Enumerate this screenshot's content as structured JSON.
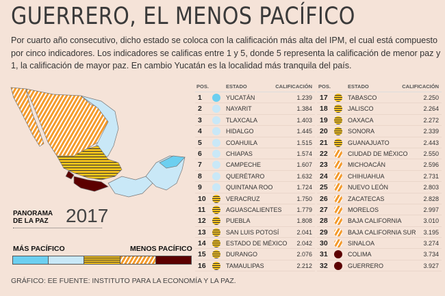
{
  "title": "GUERRERO, EL MENOS PACÍFICO",
  "intro": "Por cuarto año consecutivo, dicho estado se coloca con la calificación más alta del IPM, el cual está compuesto por cinco indicadores. Los indicadores se calificas entre 1 y 5, donde 5 representa la calificación de menor paz y 1, la calificación de mayor paz. En cambio Yucatán   es la localidad más tranquila del país.",
  "panorama": {
    "line1": "PANORAMA",
    "line2": "DE LA PAZ",
    "year": "2017"
  },
  "legend": {
    "left": "MÁS PACÍFICO",
    "right": "MENOS PACÍFICO"
  },
  "colors": {
    "most_peaceful": "#6ccff0",
    "peaceful": "#c9e8f7",
    "mid": "#f6c21c",
    "high": "#f39a2c",
    "least_peaceful": "#5c0000"
  },
  "table_headers": {
    "pos": "POS.",
    "state": "ESTADO",
    "score": "CALIFICACIÓN"
  },
  "rows": [
    {
      "pos": "1",
      "state": "YUCATÁN",
      "score": "1.239",
      "cat": 1
    },
    {
      "pos": "2",
      "state": "NAYARIT",
      "score": "1.384",
      "cat": 2
    },
    {
      "pos": "3",
      "state": "TLAXCALA",
      "score": "1.403",
      "cat": 2
    },
    {
      "pos": "4",
      "state": "HIDALGO",
      "score": "1.445",
      "cat": 2
    },
    {
      "pos": "5",
      "state": "COAHUILA",
      "score": "1.515",
      "cat": 2
    },
    {
      "pos": "6",
      "state": "CHIAPAS",
      "score": "1.574",
      "cat": 2
    },
    {
      "pos": "7",
      "state": "CAMPECHE",
      "score": "1.607",
      "cat": 2
    },
    {
      "pos": "8",
      "state": "QUERÉTARO",
      "score": "1.632",
      "cat": 2
    },
    {
      "pos": "9",
      "state": "QUINTANA ROO",
      "score": "1.724",
      "cat": 2
    },
    {
      "pos": "10",
      "state": "VERACRUZ",
      "score": "1.750",
      "cat": 3
    },
    {
      "pos": "11",
      "state": "AGUASCALIENTES",
      "score": "1.779",
      "cat": 3
    },
    {
      "pos": "12",
      "state": "PUEBLA",
      "score": "1.808",
      "cat": 3
    },
    {
      "pos": "13",
      "state": "SAN LUIS POTOSÍ",
      "score": "2.041",
      "cat": 3
    },
    {
      "pos": "14",
      "state": "ESTADO DE MÉXICO",
      "score": "2.042",
      "cat": 3
    },
    {
      "pos": "15",
      "state": "DURANGO",
      "score": "2.076",
      "cat": 3
    },
    {
      "pos": "16",
      "state": "TAMAULIPAS",
      "score": "2.212",
      "cat": 3
    },
    {
      "pos": "17",
      "state": "TABASCO",
      "score": "2.250",
      "cat": 3
    },
    {
      "pos": "18",
      "state": "JALISCO",
      "score": "2.264",
      "cat": 3
    },
    {
      "pos": "19",
      "state": "OAXACA",
      "score": "2.272",
      "cat": 3
    },
    {
      "pos": "20",
      "state": "SONORA",
      "score": "2.339",
      "cat": 3
    },
    {
      "pos": "21",
      "state": "GUANAJUATO",
      "score": "2.443",
      "cat": 3
    },
    {
      "pos": "22",
      "state": "CIUDAD DE MÉXICO",
      "score": "2.550",
      "cat": 4
    },
    {
      "pos": "23",
      "state": "MICHOACÁN",
      "score": "2.596",
      "cat": 4
    },
    {
      "pos": "24",
      "state": "CHIHUAHUA",
      "score": "2.731",
      "cat": 4
    },
    {
      "pos": "25",
      "state": "NUEVO LEÓN",
      "score": "2.803",
      "cat": 4
    },
    {
      "pos": "26",
      "state": "ZACATECAS",
      "score": "2.828",
      "cat": 4
    },
    {
      "pos": "27",
      "state": "MORELOS",
      "score": "2.997",
      "cat": 4
    },
    {
      "pos": "28",
      "state": "BAJA CALIFORNIA",
      "score": "3.010",
      "cat": 4
    },
    {
      "pos": "29",
      "state": "BAJA CALIFORNIA SUR",
      "score": "3.195",
      "cat": 4
    },
    {
      "pos": "30",
      "state": "SINALOA",
      "score": "3.274",
      "cat": 4
    },
    {
      "pos": "31",
      "state": "COLIMA",
      "score": "3.734",
      "cat": 5
    },
    {
      "pos": "32",
      "state": "GUERRERO",
      "score": "3.927",
      "cat": 5
    }
  ],
  "footer": "GRÁFICO: EE  FUENTE: INSTITUTO PARA LA ECONOMÍA Y LA PAZ."
}
